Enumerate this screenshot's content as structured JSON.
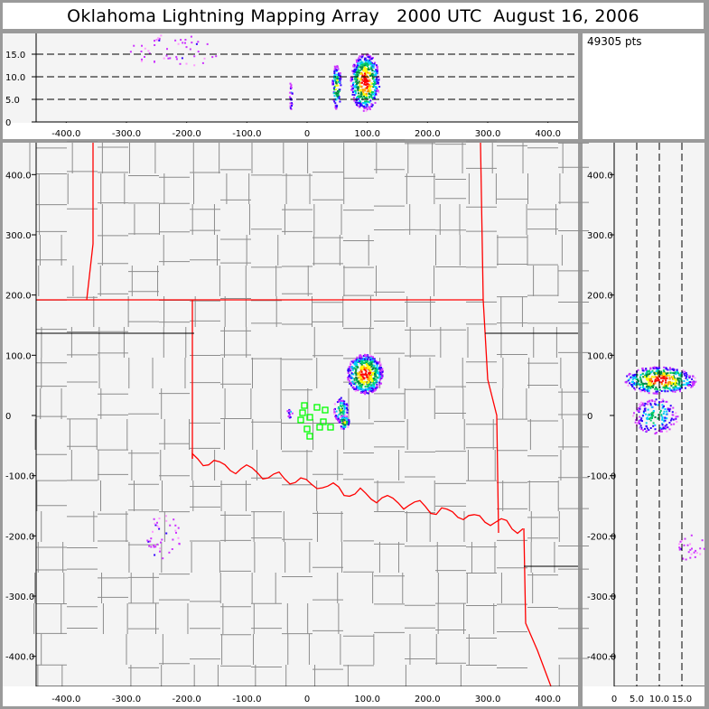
{
  "title": "Oklahoma Lightning Mapping Array   2000 UTC  August 16, 2006",
  "point_count": "49305 pts",
  "colors": {
    "state_border": "#ff0000",
    "county_border": "#8c8c8c",
    "station": "#00ff00",
    "plot_bg": "#f4f4f4",
    "frame": "#9a9a9a"
  },
  "chart_data": [
    {
      "type": "scatter",
      "panel": "altitude-vs-east-west",
      "xlim": [
        -450,
        450
      ],
      "ylim": [
        0,
        20
      ],
      "x_ticks": [
        "-400.0",
        "-300.0",
        "-200.0",
        "-100.0",
        "0",
        "100.0",
        "200.0",
        "300.0",
        "400.0"
      ],
      "y_ticks": [
        "0",
        "5.0",
        "10.0",
        "15.0"
      ],
      "reference_lines_y": [
        5,
        10,
        15
      ],
      "clusters": [
        {
          "x": [
            40,
            60
          ],
          "z": [
            2,
            14
          ],
          "density": "medium"
        },
        {
          "x": [
            70,
            120
          ],
          "z": [
            1,
            20
          ],
          "density": "high",
          "peak_z": 10
        },
        {
          "x": [
            -30,
            -25
          ],
          "z": [
            2,
            10
          ],
          "density": "low"
        },
        {
          "x": [
            -280,
            -130
          ],
          "z": [
            8,
            20
          ],
          "density": "sparse"
        }
      ]
    },
    {
      "type": "scatter",
      "panel": "plan-view-map",
      "xlim": [
        -450,
        450
      ],
      "ylim": [
        -450,
        450
      ],
      "x_ticks": [
        "-400.0",
        "-300.0",
        "-200.0",
        "-100.0",
        "0",
        "100.0",
        "200.0",
        "300.0",
        "400.0"
      ],
      "y_ticks": [
        "400.0",
        "300.0",
        "200.0",
        "100.0",
        "0",
        "-100.0",
        "-200.0",
        "-300.0",
        "-400.0"
      ],
      "stations": [
        [
          -4.5,
          16.5
        ],
        [
          16.5,
          13.5
        ],
        [
          30,
          9
        ],
        [
          -7.5,
          4.5
        ],
        [
          4.5,
          -3
        ],
        [
          -10.5,
          -7.5
        ],
        [
          27,
          -10.5
        ],
        [
          21,
          -19.5
        ],
        [
          0,
          -22.5
        ],
        [
          39,
          -19.5
        ],
        [
          4.5,
          -34.5
        ]
      ],
      "clusters": [
        {
          "x": [
            70,
            120
          ],
          "y": [
            40,
            100
          ],
          "density": "high"
        },
        {
          "x": [
            40,
            60
          ],
          "y": [
            -25,
            35
          ],
          "density": "medium"
        },
        {
          "x": [
            -35,
            -25
          ],
          "y": [
            0,
            10
          ],
          "density": "low"
        },
        {
          "x": [
            -280,
            -130
          ],
          "y": [
            -260,
            -180
          ],
          "density": "sparse"
        }
      ]
    },
    {
      "type": "scatter",
      "panel": "north-south-vs-altitude",
      "xlim": [
        0,
        20
      ],
      "ylim": [
        -450,
        450
      ],
      "x_ticks": [
        "0",
        "5.0",
        "10.0",
        "15.0"
      ],
      "y_ticks": [
        "400.0",
        "300.0",
        "200.0",
        "100.0",
        "0",
        "-100.0",
        "-200.0",
        "-300.0",
        "-400.0"
      ],
      "reference_lines_x": [
        5,
        10,
        15
      ]
    }
  ]
}
